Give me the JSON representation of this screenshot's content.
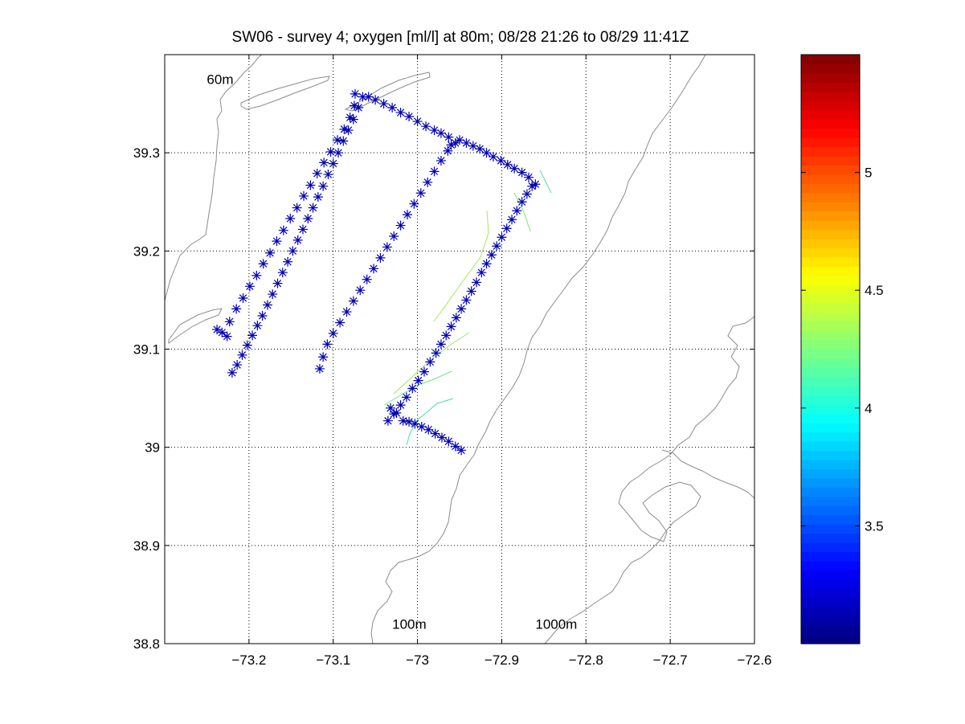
{
  "chart_data": {
    "type": "scatter",
    "title": "SW06 - survey 4; oxygen [ml/l] at 80m; 08/28 21:26 to 08/29 11:41Z",
    "xlabel": "",
    "ylabel": "",
    "xlim": [
      -73.3,
      -72.6
    ],
    "ylim": [
      38.8,
      39.4
    ],
    "xticks": [
      -73.2,
      -73.1,
      -73.0,
      -72.9,
      -72.8,
      -72.7,
      -72.6
    ],
    "xtick_labels": [
      "−73.2",
      "−73.1",
      "−73",
      "−72.9",
      "−72.8",
      "−72.7",
      "−72.6"
    ],
    "yticks": [
      38.8,
      38.9,
      39.0,
      39.1,
      39.2,
      39.3
    ],
    "ytick_labels": [
      "38.8",
      "38.9",
      "39",
      "39.1",
      "39.2",
      "39.3"
    ],
    "grid": true,
    "annotations": [
      {
        "text": "60m",
        "x": -73.25,
        "y": 39.37
      },
      {
        "text": "100m",
        "x": -73.03,
        "y": 38.815
      },
      {
        "text": "1000m",
        "x": -72.86,
        "y": 38.815
      }
    ],
    "colorbar": {
      "clim": [
        3.0,
        5.5
      ],
      "ticks": [
        3.5,
        4.0,
        4.5,
        5.0
      ],
      "tick_labels": [
        "3.5",
        "4",
        "4.5",
        "5"
      ],
      "colormap": "jet"
    },
    "series": [
      {
        "color": "#0000b4",
        "marker": "asterisk",
        "track": [
          [
            -72.948,
            38.997
          ],
          [
            -73.017,
            39.027
          ],
          [
            -73.032,
            39.04
          ],
          [
            -73.035,
            39.027
          ],
          [
            -72.97,
            39.113
          ],
          [
            -72.878,
            39.263
          ],
          [
            -72.86,
            39.268
          ],
          [
            -72.955,
            39.31
          ],
          [
            -73.065,
            39.357
          ],
          [
            -73.064,
            39.357
          ],
          [
            -73.074,
            39.36
          ],
          [
            -73.12,
            39.073
          ],
          [
            -73.125,
            39.077
          ],
          [
            -73.226,
            39.113
          ],
          [
            -73.238,
            39.12
          ],
          [
            -73.223,
            39.128
          ],
          [
            -73.074,
            39.36
          ],
          [
            -73.116,
            39.08
          ],
          [
            -73.107,
            39.105
          ],
          [
            -72.955,
            39.31
          ],
          [
            -72.878,
            39.263
          ],
          [
            -72.86,
            39.268
          ],
          [
            -72.968,
            39.115
          ]
        ],
        "points": [
          [
            -72.948,
            38.997
          ],
          [
            -72.955,
            39.001
          ],
          [
            -72.963,
            39.006
          ],
          [
            -72.971,
            39.01
          ],
          [
            -72.979,
            39.014
          ],
          [
            -72.987,
            39.018
          ],
          [
            -72.995,
            39.021
          ],
          [
            -73.003,
            39.024
          ],
          [
            -73.01,
            39.026
          ],
          [
            -73.017,
            39.027
          ],
          [
            -73.025,
            39.035
          ],
          [
            -73.032,
            39.04
          ],
          [
            -73.035,
            39.027
          ],
          [
            -73.028,
            39.034
          ],
          [
            -73.02,
            39.043
          ],
          [
            -73.013,
            39.051
          ],
          [
            -73.006,
            39.06
          ],
          [
            -72.999,
            39.068
          ],
          [
            -72.992,
            39.077
          ],
          [
            -72.985,
            39.087
          ],
          [
            -72.978,
            39.096
          ],
          [
            -72.972,
            39.105
          ],
          [
            -72.966,
            39.114
          ],
          [
            -72.96,
            39.123
          ],
          [
            -72.954,
            39.132
          ],
          [
            -72.948,
            39.141
          ],
          [
            -72.942,
            39.15
          ],
          [
            -72.936,
            39.159
          ],
          [
            -72.93,
            39.168
          ],
          [
            -72.924,
            39.178
          ],
          [
            -72.918,
            39.187
          ],
          [
            -72.912,
            39.196
          ],
          [
            -72.906,
            39.205
          ],
          [
            -72.9,
            39.214
          ],
          [
            -72.894,
            39.223
          ],
          [
            -72.888,
            39.232
          ],
          [
            -72.882,
            39.241
          ],
          [
            -72.876,
            39.25
          ],
          [
            -72.87,
            39.258
          ],
          [
            -72.864,
            39.266
          ],
          [
            -72.86,
            39.268
          ],
          [
            -72.868,
            39.275
          ],
          [
            -72.876,
            39.28
          ],
          [
            -72.885,
            39.284
          ],
          [
            -72.893,
            39.288
          ],
          [
            -72.901,
            39.292
          ],
          [
            -72.91,
            39.296
          ],
          [
            -72.918,
            39.3
          ],
          [
            -72.926,
            39.304
          ],
          [
            -72.934,
            39.307
          ],
          [
            -72.942,
            39.31
          ],
          [
            -72.95,
            39.313
          ],
          [
            -72.955,
            39.31
          ],
          [
            -72.963,
            39.316
          ],
          [
            -72.972,
            39.32
          ],
          [
            -72.98,
            39.323
          ],
          [
            -72.99,
            39.327
          ],
          [
            -73.0,
            39.332
          ],
          [
            -73.01,
            39.337
          ],
          [
            -73.02,
            39.341
          ],
          [
            -73.03,
            39.346
          ],
          [
            -73.04,
            39.35
          ],
          [
            -73.05,
            39.354
          ],
          [
            -73.058,
            39.357
          ],
          [
            -73.065,
            39.357
          ],
          [
            -73.074,
            39.36
          ],
          [
            -73.07,
            39.346
          ],
          [
            -73.076,
            39.334
          ],
          [
            -73.082,
            39.323
          ],
          [
            -73.088,
            39.312
          ],
          [
            -73.094,
            39.3
          ],
          [
            -73.1,
            39.289
          ],
          [
            -73.106,
            39.278
          ],
          [
            -73.112,
            39.266
          ],
          [
            -73.118,
            39.255
          ],
          [
            -73.124,
            39.244
          ],
          [
            -73.13,
            39.233
          ],
          [
            -73.136,
            39.222
          ],
          [
            -73.142,
            39.211
          ],
          [
            -73.148,
            39.2
          ],
          [
            -73.154,
            39.189
          ],
          [
            -73.16,
            39.178
          ],
          [
            -73.166,
            39.167
          ],
          [
            -73.172,
            39.156
          ],
          [
            -73.178,
            39.145
          ],
          [
            -73.184,
            39.134
          ],
          [
            -73.19,
            39.124
          ],
          [
            -73.196,
            39.114
          ],
          [
            -73.202,
            39.104
          ],
          [
            -73.208,
            39.094
          ],
          [
            -73.214,
            39.084
          ],
          [
            -73.22,
            39.076
          ],
          [
            -73.226,
            39.113
          ],
          [
            -73.232,
            39.117
          ],
          [
            -73.238,
            39.12
          ],
          [
            -73.223,
            39.128
          ],
          [
            -73.215,
            39.141
          ],
          [
            -73.207,
            39.152
          ],
          [
            -73.199,
            39.164
          ],
          [
            -73.191,
            39.175
          ],
          [
            -73.183,
            39.187
          ],
          [
            -73.175,
            39.198
          ],
          [
            -73.167,
            39.21
          ],
          [
            -73.159,
            39.221
          ],
          [
            -73.151,
            39.233
          ],
          [
            -73.143,
            39.244
          ],
          [
            -73.135,
            39.256
          ],
          [
            -73.127,
            39.267
          ],
          [
            -73.119,
            39.279
          ],
          [
            -73.111,
            39.29
          ],
          [
            -73.103,
            39.301
          ],
          [
            -73.095,
            39.313
          ],
          [
            -73.087,
            39.324
          ],
          [
            -73.08,
            39.336
          ],
          [
            -73.075,
            39.348
          ],
          [
            -73.116,
            39.08
          ],
          [
            -73.112,
            39.092
          ],
          [
            -73.107,
            39.105
          ],
          [
            -73.1,
            39.116
          ],
          [
            -73.092,
            39.127
          ],
          [
            -73.084,
            39.138
          ],
          [
            -73.076,
            39.149
          ],
          [
            -73.068,
            39.16
          ],
          [
            -73.06,
            39.171
          ],
          [
            -73.052,
            39.182
          ],
          [
            -73.044,
            39.193
          ],
          [
            -73.036,
            39.204
          ],
          [
            -73.028,
            39.215
          ],
          [
            -73.02,
            39.226
          ],
          [
            -73.012,
            39.237
          ],
          [
            -73.004,
            39.248
          ],
          [
            -72.996,
            39.259
          ],
          [
            -72.988,
            39.27
          ],
          [
            -72.98,
            39.281
          ],
          [
            -72.972,
            39.292
          ],
          [
            -72.964,
            39.302
          ],
          [
            -72.96,
            39.308
          ]
        ]
      }
    ]
  }
}
